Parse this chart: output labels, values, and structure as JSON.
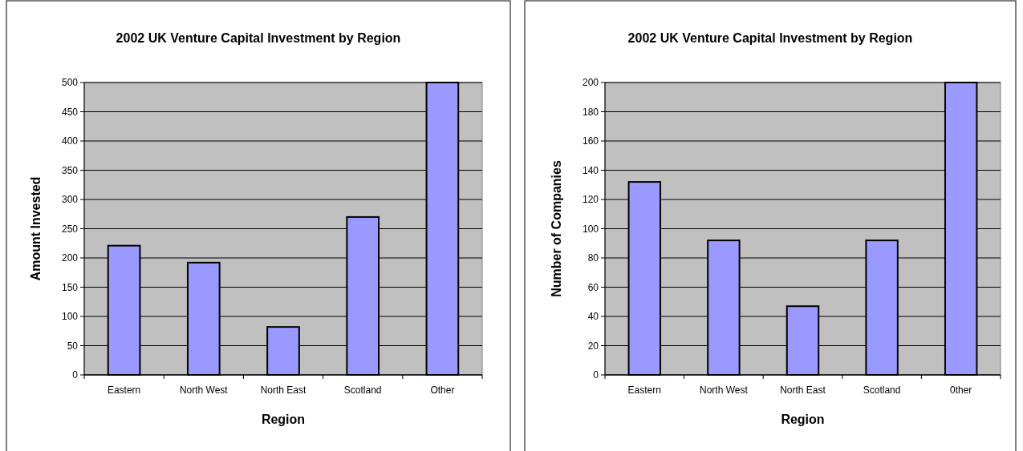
{
  "chart_data": [
    {
      "type": "bar",
      "title": "2002 UK Venture Capital Investment by Region",
      "xlabel": "Region",
      "ylabel": "Amount Invested",
      "categories": [
        "Eastern",
        "North West",
        "North East",
        "Scotland",
        "Other"
      ],
      "values": [
        221,
        192,
        82,
        270,
        500
      ],
      "color": "#9999ff",
      "ylim": [
        0,
        500
      ],
      "yticks": [
        0,
        50,
        100,
        150,
        200,
        250,
        300,
        350,
        400,
        450,
        500
      ],
      "grid": "y"
    },
    {
      "type": "bar",
      "title": "2002 UK Venture Capital Investment by Region",
      "xlabel": "Region",
      "ylabel": "Number of Companies",
      "categories": [
        "Eastern",
        "North West",
        "North East",
        "Scotland",
        "0ther"
      ],
      "values": [
        132,
        92,
        47,
        92,
        200
      ],
      "color": "#9999ff",
      "ylim": [
        0,
        200
      ],
      "yticks": [
        0,
        20,
        40,
        60,
        80,
        100,
        120,
        140,
        160,
        180,
        200
      ],
      "grid": "y"
    }
  ]
}
